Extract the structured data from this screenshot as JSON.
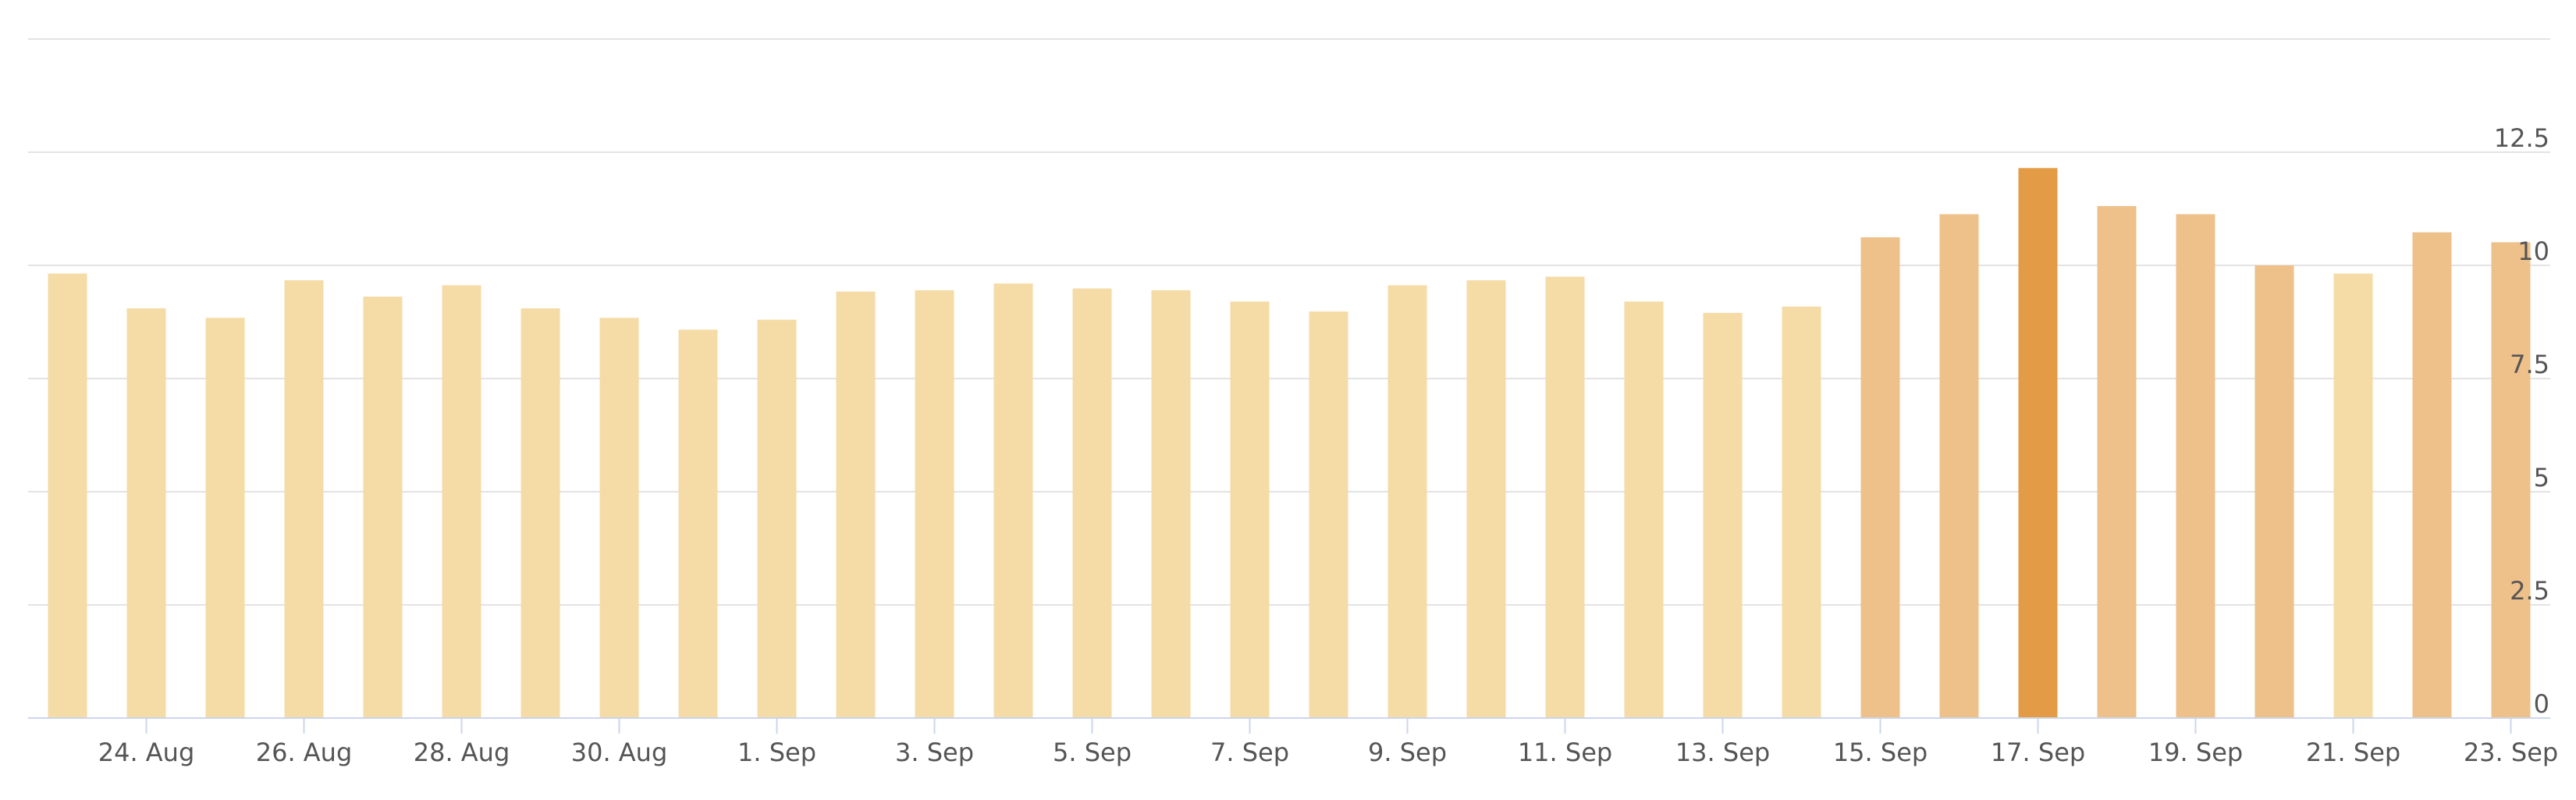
{
  "chart_data": {
    "type": "bar",
    "categories": [
      null,
      "24. Aug",
      null,
      "26. Aug",
      null,
      "28. Aug",
      null,
      "30. Aug",
      null,
      "1. Sep",
      null,
      "3. Sep",
      null,
      "5. Sep",
      null,
      "7. Sep",
      null,
      "9. Sep",
      null,
      "11. Sep",
      null,
      "13. Sep",
      null,
      "15. Sep",
      null,
      "17. Sep",
      null,
      "19. Sep",
      null,
      "21. Sep",
      null,
      "23. Sep"
    ],
    "values": [
      9.82,
      9.05,
      8.84,
      9.67,
      9.31,
      9.56,
      9.05,
      8.84,
      8.58,
      8.8,
      9.42,
      9.45,
      9.6,
      9.49,
      9.45,
      9.2,
      8.98,
      9.56,
      9.67,
      9.75,
      9.2,
      8.95,
      9.09,
      10.62,
      11.13,
      12.15,
      11.31,
      11.13,
      10.0,
      9.82,
      10.73,
      10.51
    ],
    "colors": [
      "#f5dba6",
      "#f5dba6",
      "#f5dba6",
      "#f5dba6",
      "#f5dba6",
      "#f5dba6",
      "#f5dba6",
      "#f5dba6",
      "#f5dba6",
      "#f5dba6",
      "#f5dba6",
      "#f5dba6",
      "#f5dba6",
      "#f5dba6",
      "#f5dba6",
      "#f5dba6",
      "#f5dba6",
      "#f5dba6",
      "#f5dba6",
      "#f5dba6",
      "#f5dba6",
      "#f5dba6",
      "#f5dba6",
      "#eec08a",
      "#eec08a",
      "#e39b45",
      "#eec08a",
      "#eec08a",
      "#eec08a",
      "#f5dba6",
      "#eec08a",
      "#eec08a"
    ],
    "ylim": [
      0,
      15
    ],
    "yticks": [
      0,
      2.5,
      5,
      7.5,
      10,
      12.5
    ],
    "grid": true
  }
}
